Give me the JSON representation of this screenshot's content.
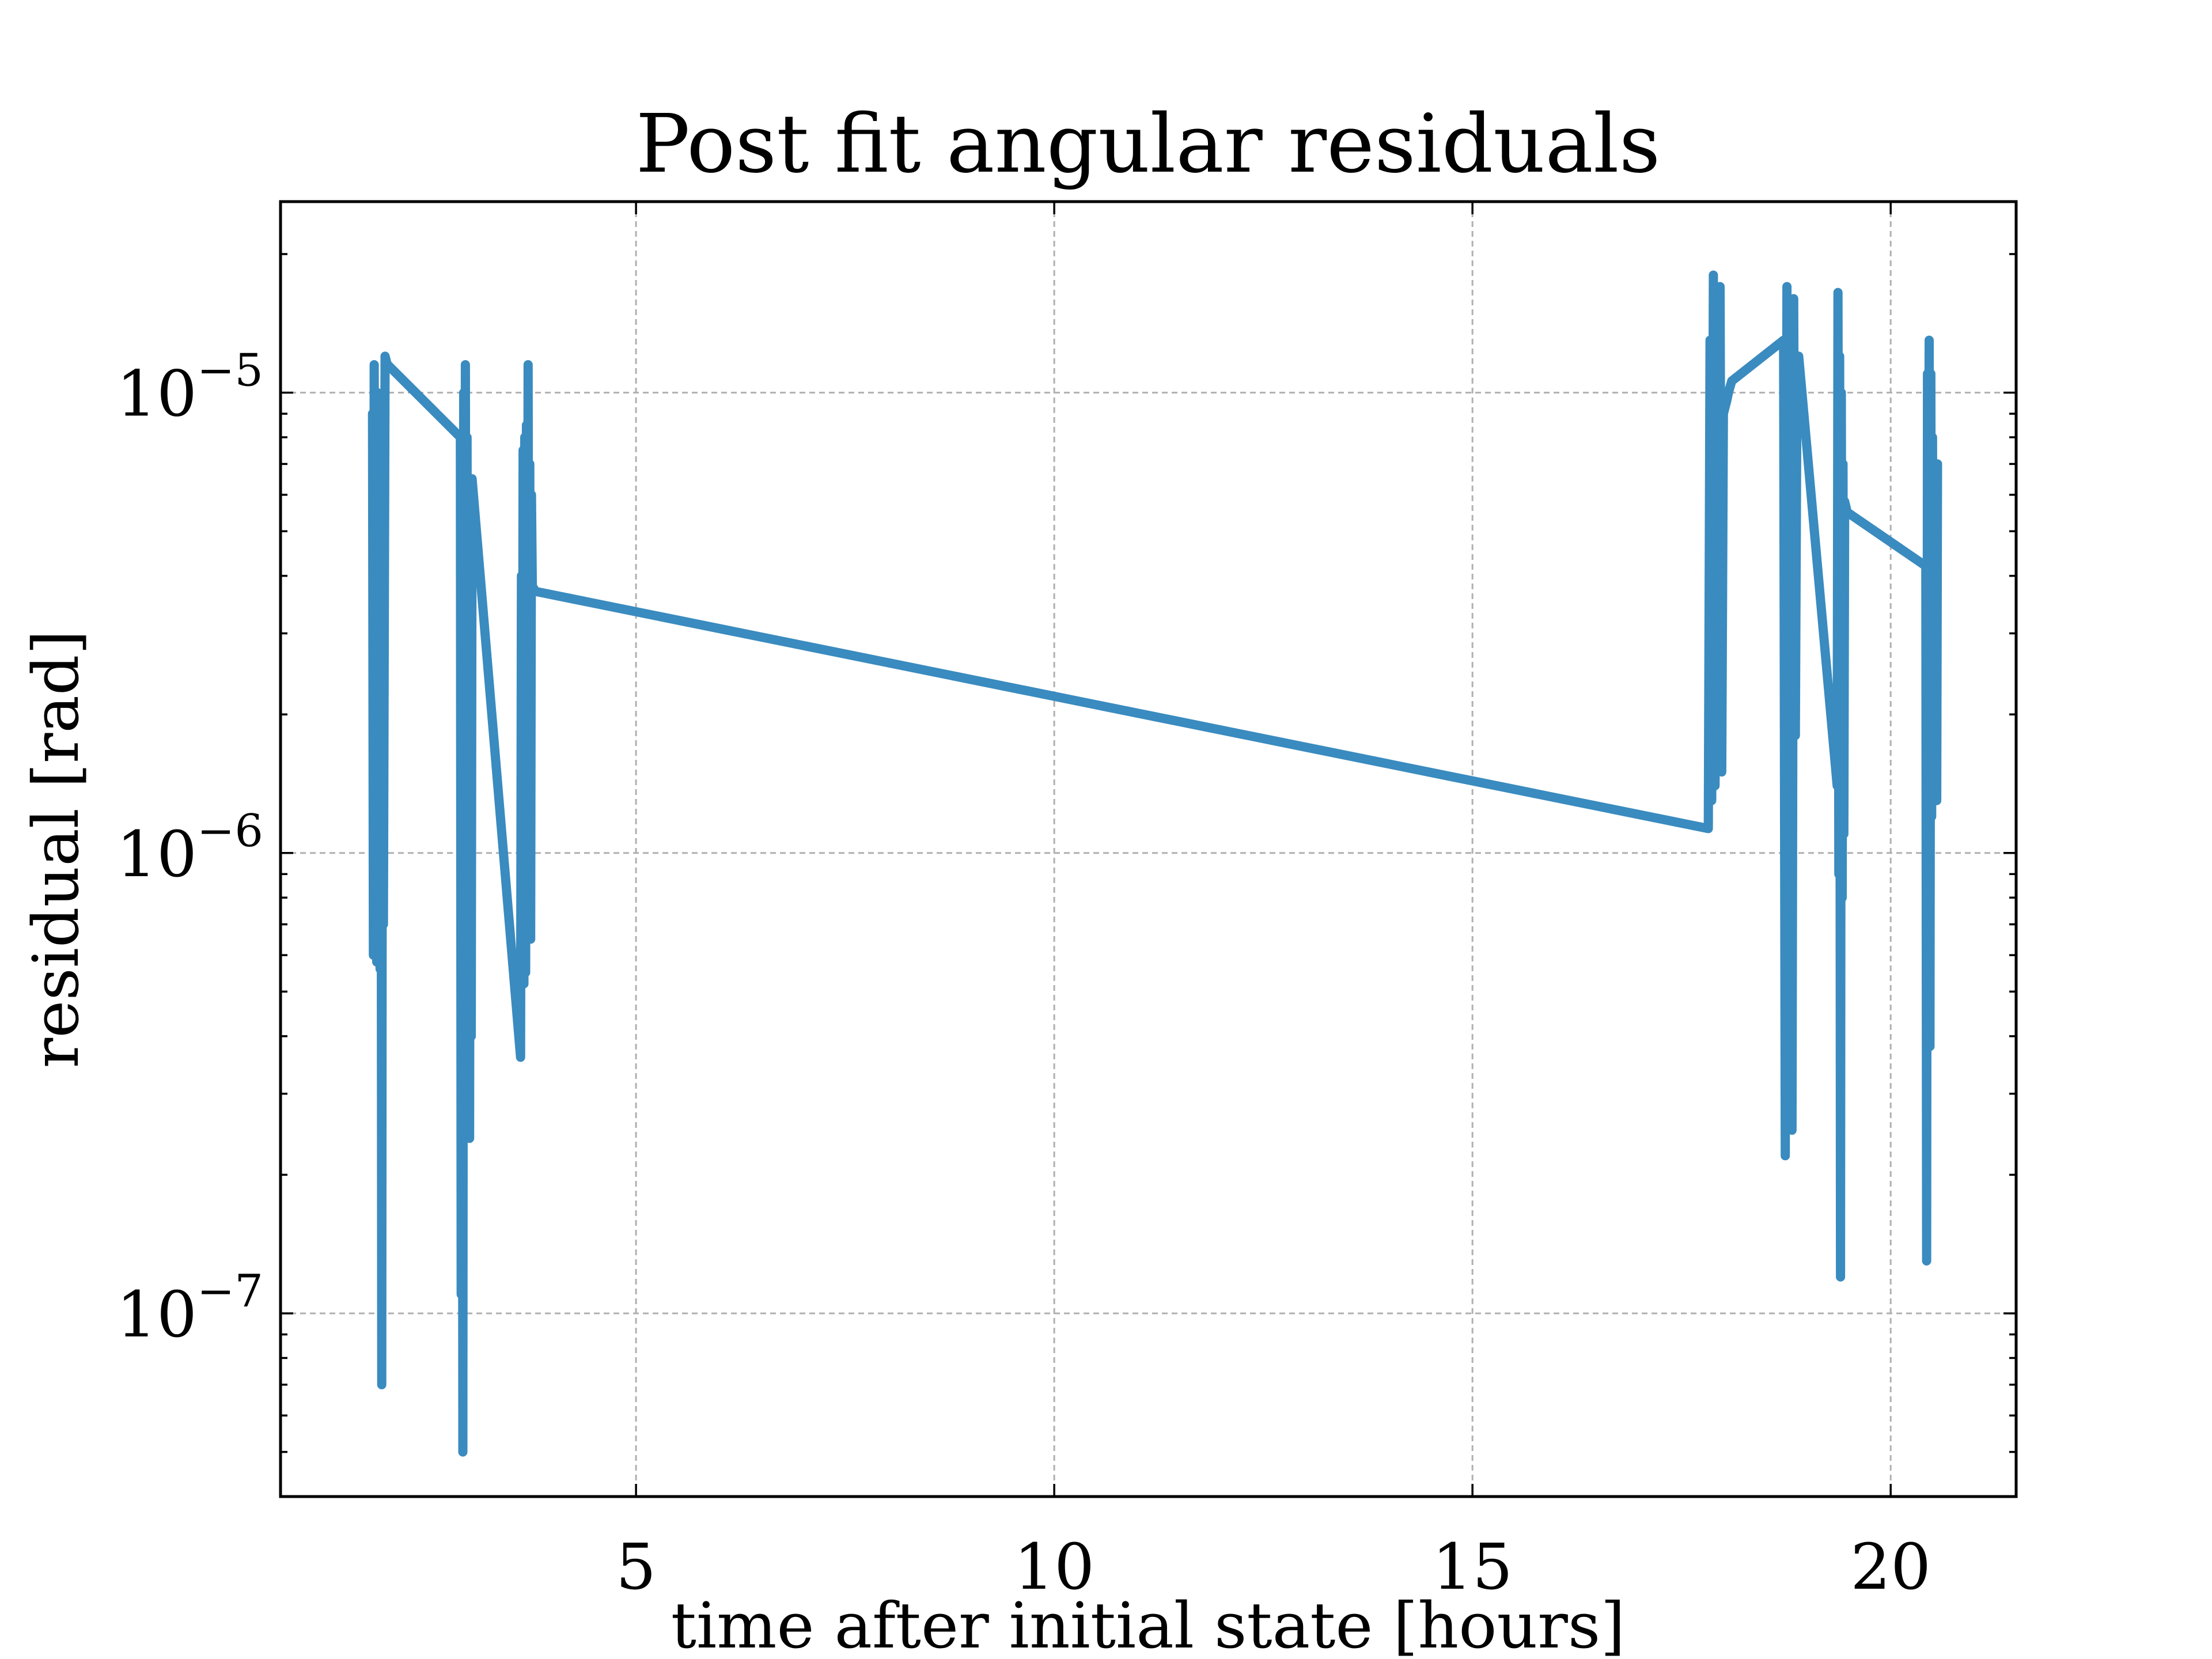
{
  "chart_data": {
    "type": "line",
    "title": "Post fit angular residuals",
    "xlabel": "time after initial state [hours]",
    "ylabel": "residual [rad]",
    "xlim": [
      0.75,
      21.5
    ],
    "ylim": [
      4e-08,
      2.6e-05
    ],
    "yscale": "log",
    "grid": true,
    "line_color": "#3a8bbf",
    "x_ticks": [
      {
        "value": 5,
        "label": "5"
      },
      {
        "value": 10,
        "label": "10"
      },
      {
        "value": 15,
        "label": "15"
      },
      {
        "value": 20,
        "label": "20"
      }
    ],
    "y_ticks": [
      {
        "value": 1e-07,
        "base": "10",
        "exp": "−7"
      },
      {
        "value": 1e-06,
        "base": "10",
        "exp": "−6"
      },
      {
        "value": 1e-05,
        "base": "10",
        "exp": "−5"
      }
    ],
    "series": [
      {
        "x": [
          1.85,
          1.86,
          1.87,
          1.88,
          1.89,
          1.9,
          1.91,
          1.92,
          1.93,
          1.94,
          1.95,
          1.96,
          1.97,
          1.98,
          2.0,
          2.01,
          2.02,
          2.03,
          2.9,
          2.91,
          2.92,
          2.93,
          2.94,
          2.95,
          2.96,
          2.97,
          2.98,
          2.99,
          3.0,
          3.01,
          3.02,
          3.03,
          3.04,
          3.62,
          3.63,
          3.64,
          3.65,
          3.66,
          3.67,
          3.68,
          3.69,
          3.7,
          3.71,
          3.72,
          3.73,
          3.74,
          3.75,
          3.76,
          3.78,
          3.8,
          17.82,
          17.84,
          17.86,
          17.88,
          17.9,
          17.92,
          17.94,
          17.96,
          17.98,
          18.0,
          18.02,
          18.04,
          18.06,
          18.08,
          18.1,
          18.72,
          18.74,
          18.76,
          18.78,
          18.8,
          18.82,
          18.84,
          18.86,
          18.88,
          18.9,
          19.36,
          19.37,
          19.38,
          19.39,
          19.4,
          19.41,
          19.42,
          19.43,
          19.44,
          19.45,
          19.46,
          19.47,
          19.48,
          20.42,
          20.43,
          20.44,
          20.45,
          20.46,
          20.47,
          20.48,
          20.49,
          20.5,
          20.51,
          20.52,
          20.53,
          20.54,
          20.55,
          20.56
        ],
        "y": [
          9e-06,
          6e-07,
          1.15e-05,
          8e-07,
          9.5e-06,
          5.8e-07,
          1e-05,
          7e-07,
          9.8e-06,
          5.6e-07,
          9.6e-06,
          7e-08,
          9.5e-06,
          7e-07,
          1.2e-05,
          1.18e-05,
          1.16e-05,
          1.15e-05,
          8e-06,
          1.1e-07,
          7.5e-06,
          5e-08,
          1e-05,
          3e-07,
          1.15e-05,
          2.5e-07,
          8e-06,
          3.5e-07,
          6.5e-06,
          2.4e-07,
          6e-06,
          4e-07,
          6.5e-06,
          3.6e-07,
          4e-06,
          6e-07,
          7.5e-06,
          5.2e-07,
          8e-06,
          5.5e-07,
          8.5e-06,
          6.5e-07,
          1.15e-05,
          7e-07,
          7e-06,
          6.5e-07,
          6e-06,
          3.8e-06,
          3.75e-06,
          3.7e-06,
          1.13e-06,
          1.3e-05,
          1.3e-06,
          1.8e-05,
          1.4e-06,
          1.6e-05,
          1.6e-06,
          1.7e-05,
          1.5e-06,
          9e-06,
          9.3e-06,
          9.6e-06,
          1e-05,
          1.03e-05,
          1.06e-05,
          1.3e-05,
          2.2e-07,
          1.7e-05,
          3e-07,
          1.3e-05,
          2.5e-07,
          1.6e-05,
          1.8e-06,
          1.1e-05,
          1.2e-05,
          1.4e-06,
          1.65e-05,
          9e-07,
          1.2e-05,
          1.2e-07,
          1e-05,
          8e-07,
          7e-06,
          1.1e-06,
          5.8e-06,
          5.7e-06,
          5.6e-06,
          5.5e-06,
          4.2e-06,
          1.3e-07,
          1.1e-05,
          2e-06,
          1.3e-05,
          3.8e-07,
          1.1e-05,
          1.2e-06,
          8e-06,
          1.5e-06,
          7e-06,
          2e-06,
          6e-06,
          1.3e-06,
          7e-06
        ]
      }
    ]
  }
}
